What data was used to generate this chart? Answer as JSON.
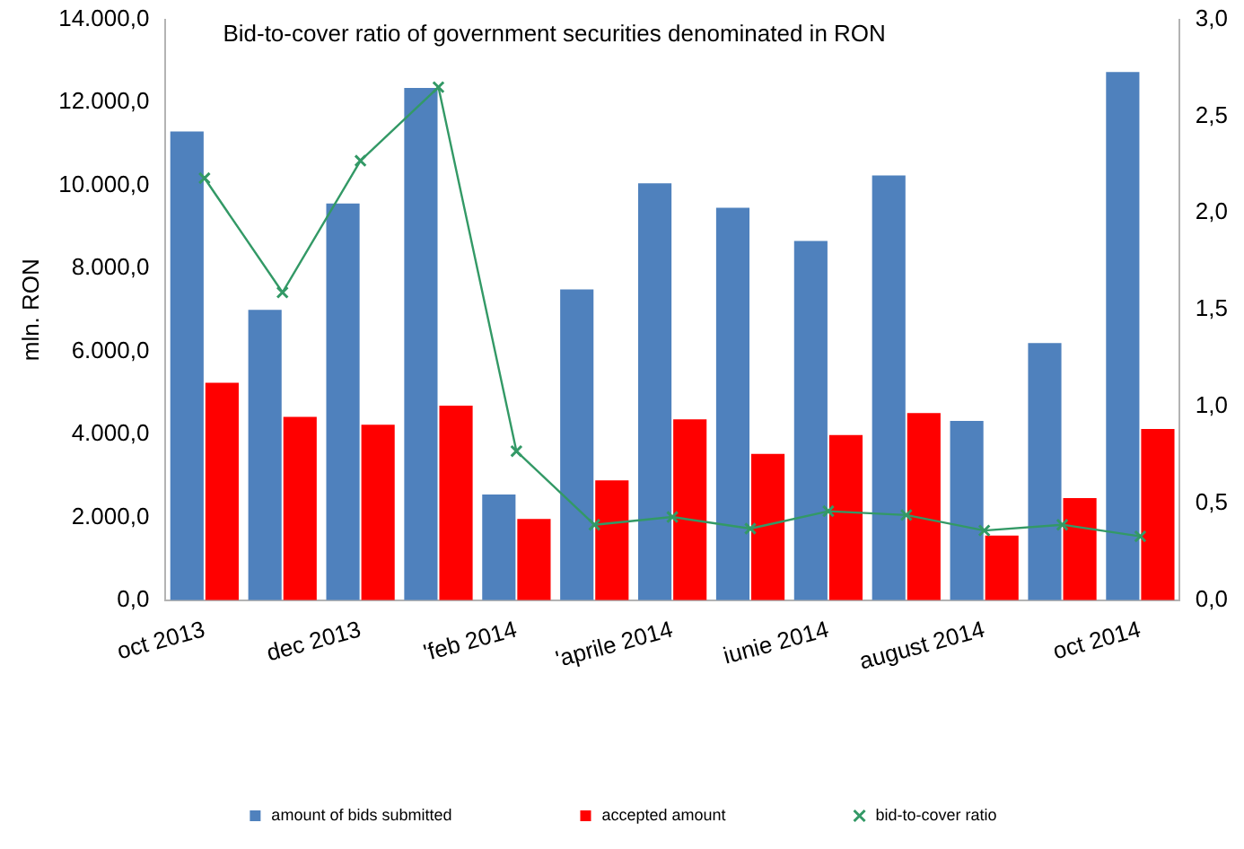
{
  "chart_data": {
    "type": "bar",
    "title": "Bid-to-cover ratio of government securities denominated in RON",
    "ylabel": "mln. RON",
    "categories": [
      "oct 2013",
      null,
      "dec 2013",
      null,
      "'feb 2014",
      null,
      "'aprile 2014",
      null,
      "iunie 2014",
      null,
      "august 2014",
      null,
      "oct 2014"
    ],
    "series": [
      {
        "name": "amount of bids submitted",
        "color": "#4f81bd",
        "values": [
          11300,
          7000,
          9560,
          12350,
          2550,
          7490,
          10050,
          9460,
          8660,
          10240,
          4320,
          6200,
          12730
        ]
      },
      {
        "name": "accepted amount",
        "color": "#ff0000",
        "values": [
          5240,
          4420,
          4230,
          4690,
          1960,
          2890,
          4360,
          3530,
          3980,
          4510,
          1560,
          2460,
          4130
        ]
      },
      {
        "name": "bid-to-cover ratio",
        "type": "line",
        "axis": "y2",
        "color": "#339966",
        "marker": "cross",
        "values": [
          2.18,
          1.59,
          2.27,
          2.65,
          0.77,
          0.39,
          0.43,
          0.37,
          0.46,
          0.44,
          0.36,
          0.39,
          0.33
        ]
      }
    ],
    "ylim": [
      0,
      14000
    ],
    "yticks": [
      {
        "value": 0,
        "label": "0,0"
      },
      {
        "value": 2000,
        "label": "2.000,0"
      },
      {
        "value": 4000,
        "label": "4.000,0"
      },
      {
        "value": 6000,
        "label": "6.000,0"
      },
      {
        "value": 8000,
        "label": "8.000,0"
      },
      {
        "value": 10000,
        "label": "10.000,0"
      },
      {
        "value": 12000,
        "label": "12.000,0"
      },
      {
        "value": 14000,
        "label": "14.000,0"
      }
    ],
    "y2lim": [
      0,
      3
    ],
    "y2ticks": [
      {
        "value": 0,
        "label": "0,0"
      },
      {
        "value": 0.5,
        "label": "0,5"
      },
      {
        "value": 1,
        "label": "1,0"
      },
      {
        "value": 1.5,
        "label": "1,5"
      },
      {
        "value": 2,
        "label": "2,0"
      },
      {
        "value": 2.5,
        "label": "2,5"
      },
      {
        "value": 3,
        "label": "3,0"
      }
    ],
    "grid": false,
    "legend": "bottom"
  }
}
